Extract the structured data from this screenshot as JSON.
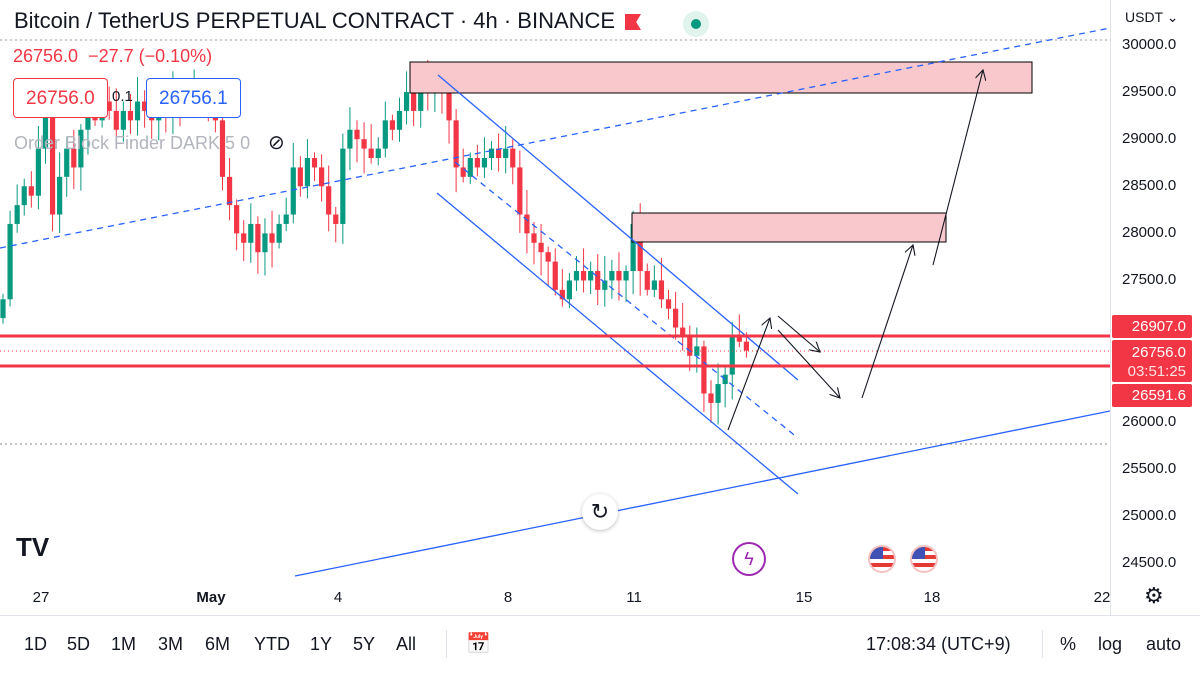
{
  "header": {
    "title": "Bitcoin / TetherUS PERPETUAL CONTRACT · 4h · BINANCE",
    "last": "26756.0",
    "change": "−27.7 (−0.10%)",
    "sell": "26756.0",
    "spread": "0.1",
    "buy": "26756.1",
    "indicator": "Order Block Finder DARK 5 0"
  },
  "price_axis": {
    "currency": "USDT",
    "labels": [
      "30000.0",
      "29500.0",
      "29000.0",
      "28500.0",
      "28000.0",
      "27500.0",
      "26000.0",
      "25500.0",
      "25000.0",
      "24500.0"
    ],
    "tags": {
      "upper": "26907.0",
      "current": "26756.0",
      "countdown": "03:51:25",
      "lower": "26591.6"
    }
  },
  "time_axis": {
    "labels": [
      "27",
      "May",
      "4",
      "8",
      "11",
      "15",
      "18",
      "22"
    ]
  },
  "bottom_bar": {
    "ranges": [
      "1D",
      "5D",
      "1M",
      "3M",
      "6M",
      "YTD",
      "1Y",
      "5Y",
      "All"
    ],
    "clock": "17:08:34 (UTC+9)",
    "percent": "%",
    "log": "log",
    "auto": "auto"
  },
  "colors": {
    "up": "#089981",
    "down": "#f23645",
    "drawing": "#2962ff",
    "zone": "#f8c8cc"
  },
  "chart_data": {
    "type": "candlestick",
    "interval": "4h",
    "ylim": [
      24300,
      30300
    ],
    "closes": [
      27300,
      28100,
      28300,
      28500,
      28400,
      28900,
      29400,
      28200,
      28600,
      28900,
      28700,
      29100,
      29300,
      29200,
      29400,
      29300,
      29100,
      29300,
      29200,
      29400,
      29300,
      29200,
      29400,
      29300,
      29500,
      29400,
      29300,
      29500,
      29400,
      29300,
      29200,
      28600,
      28300,
      28000,
      27900,
      28100,
      27800,
      28000,
      27900,
      28100,
      28200,
      28700,
      28500,
      28800,
      28700,
      28500,
      28200,
      28100,
      28900,
      29100,
      29000,
      28900,
      28800,
      28900,
      29200,
      29100,
      29300,
      29500,
      29300,
      29600,
      29500,
      29600,
      29500,
      29200,
      28700,
      28600,
      28800,
      28700,
      28800,
      28900,
      28800,
      28900,
      28700,
      28200,
      28000,
      27900,
      27800,
      27700,
      27400,
      27300,
      27500,
      27600,
      27500,
      27600,
      27400,
      27500,
      27600,
      27500,
      27600,
      28100,
      27600,
      27400,
      27500,
      27300,
      27200,
      27000,
      26900,
      26700,
      26800,
      26300,
      26200,
      26400,
      26500,
      26900,
      26850,
      26756
    ],
    "levels": [
      26907.0,
      26591.6
    ],
    "zones": [
      [
        29500,
        29820
      ],
      [
        27930,
        28230
      ]
    ]
  }
}
